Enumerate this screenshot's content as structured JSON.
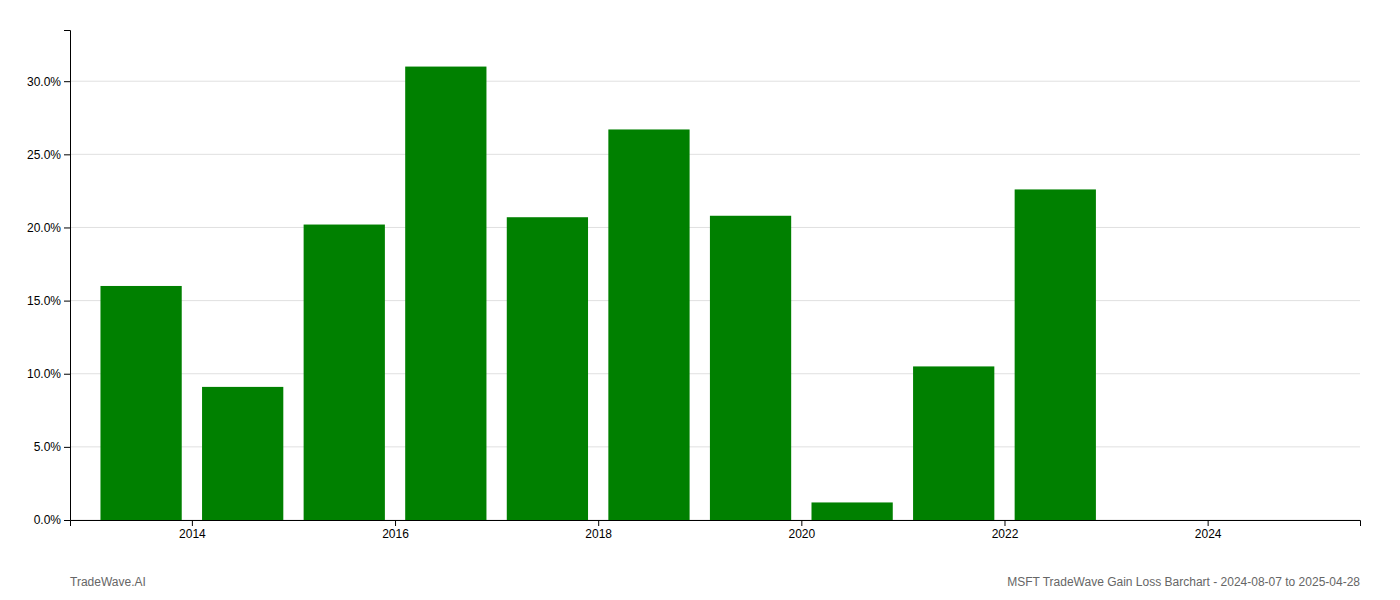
{
  "chart_data": {
    "type": "bar",
    "x": [
      2013,
      2014,
      2015,
      2016,
      2017,
      2018,
      2019,
      2020,
      2021,
      2022
    ],
    "values": [
      0.16,
      0.091,
      0.202,
      0.31,
      0.207,
      0.267,
      0.208,
      0.012,
      0.105,
      0.226
    ],
    "color": "#008000",
    "xlim": [
      2012.3,
      2025.0
    ],
    "xticks": [
      {
        "value": 2013.5,
        "label": "2014"
      },
      {
        "value": 2015.5,
        "label": "2016"
      },
      {
        "value": 2017.5,
        "label": "2018"
      },
      {
        "value": 2019.5,
        "label": "2020"
      },
      {
        "value": 2021.5,
        "label": "2022"
      },
      {
        "value": 2023.5,
        "label": "2024"
      }
    ],
    "ylim": [
      0,
      0.335
    ],
    "yticks": [
      {
        "value": 0.0,
        "label": "0.0%"
      },
      {
        "value": 0.05,
        "label": "5.0%"
      },
      {
        "value": 0.1,
        "label": "10.0%"
      },
      {
        "value": 0.15,
        "label": "15.0%"
      },
      {
        "value": 0.2,
        "label": "20.0%"
      },
      {
        "value": 0.25,
        "label": "25.0%"
      },
      {
        "value": 0.3,
        "label": "30.0%"
      }
    ],
    "grid": true,
    "annotations": [
      "TradeWave.AI",
      "MSFT TradeWave Gain Loss Barchart - 2024-08-07 to 2025-04-28"
    ]
  }
}
